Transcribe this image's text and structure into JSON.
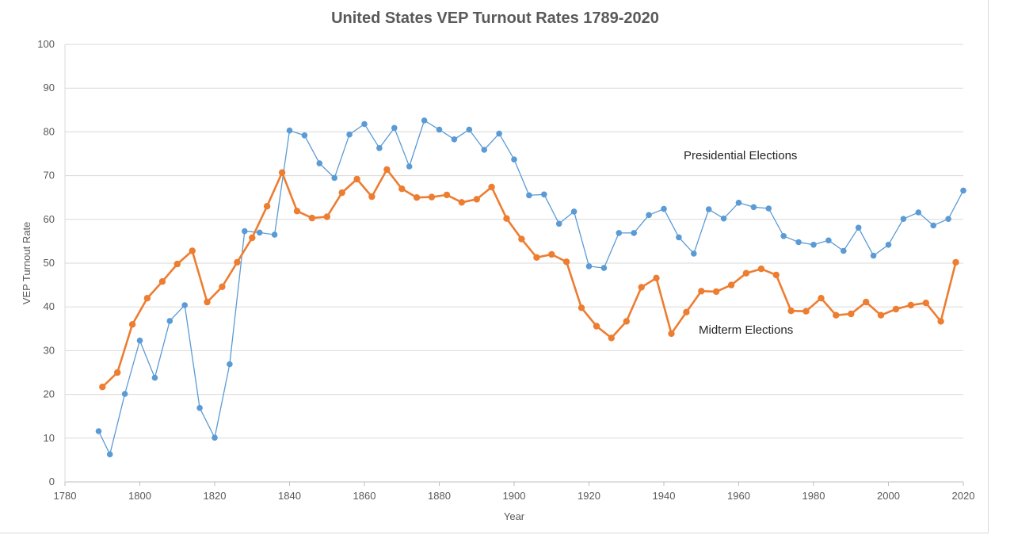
{
  "chart_data": {
    "type": "line",
    "title": "United States VEP Turnout Rates 1789-2020",
    "xlabel": "Year",
    "ylabel": "VEP Turnout Rate",
    "xlim": [
      1780,
      2020
    ],
    "ylim": [
      0,
      100
    ],
    "x_ticks": [
      1780,
      1800,
      1820,
      1840,
      1860,
      1880,
      1900,
      1920,
      1940,
      1960,
      1980,
      2000,
      2020
    ],
    "y_ticks": [
      0,
      10,
      20,
      30,
      40,
      50,
      60,
      70,
      80,
      90,
      100
    ],
    "grid": "horizontal",
    "legend": "none",
    "annotations": [
      {
        "text": "Presidential Elections",
        "series": "Presidential Elections"
      },
      {
        "text": "Midterm Elections",
        "series": "Midterm Elections"
      }
    ],
    "series": [
      {
        "name": "Presidential Elections",
        "color": "#5b9bd5",
        "points": [
          [
            1789,
            11.6
          ],
          [
            1792,
            6.3
          ],
          [
            1796,
            20.1
          ],
          [
            1800,
            32.3
          ],
          [
            1804,
            23.8
          ],
          [
            1808,
            36.8
          ],
          [
            1812,
            40.4
          ],
          [
            1816,
            16.9
          ],
          [
            1820,
            10.1
          ],
          [
            1824,
            26.9
          ],
          [
            1828,
            57.3
          ],
          [
            1832,
            57.0
          ],
          [
            1836,
            56.5
          ],
          [
            1840,
            80.3
          ],
          [
            1844,
            79.2
          ],
          [
            1848,
            72.8
          ],
          [
            1852,
            69.5
          ],
          [
            1856,
            79.4
          ],
          [
            1860,
            81.8
          ],
          [
            1864,
            76.3
          ],
          [
            1868,
            80.9
          ],
          [
            1872,
            72.1
          ],
          [
            1876,
            82.6
          ],
          [
            1880,
            80.5
          ],
          [
            1884,
            78.3
          ],
          [
            1888,
            80.5
          ],
          [
            1892,
            75.9
          ],
          [
            1896,
            79.6
          ],
          [
            1900,
            73.7
          ],
          [
            1904,
            65.5
          ],
          [
            1908,
            65.7
          ],
          [
            1912,
            59.0
          ],
          [
            1916,
            61.8
          ],
          [
            1920,
            49.3
          ],
          [
            1924,
            48.9
          ],
          [
            1928,
            56.9
          ],
          [
            1932,
            56.9
          ],
          [
            1936,
            61.0
          ],
          [
            1940,
            62.4
          ],
          [
            1944,
            55.9
          ],
          [
            1948,
            52.2
          ],
          [
            1952,
            62.3
          ],
          [
            1956,
            60.2
          ],
          [
            1960,
            63.8
          ],
          [
            1964,
            62.8
          ],
          [
            1968,
            62.5
          ],
          [
            1972,
            56.2
          ],
          [
            1976,
            54.8
          ],
          [
            1980,
            54.2
          ],
          [
            1984,
            55.2
          ],
          [
            1988,
            52.8
          ],
          [
            1992,
            58.1
          ],
          [
            1996,
            51.7
          ],
          [
            2000,
            54.2
          ],
          [
            2004,
            60.1
          ],
          [
            2008,
            61.6
          ],
          [
            2012,
            58.6
          ],
          [
            2016,
            60.1
          ],
          [
            2020,
            66.6
          ]
        ]
      },
      {
        "name": "Midterm Elections",
        "color": "#ed7d31",
        "points": [
          [
            1790,
            21.7
          ],
          [
            1794,
            25.0
          ],
          [
            1798,
            36.0
          ],
          [
            1802,
            42.0
          ],
          [
            1806,
            45.8
          ],
          [
            1810,
            49.8
          ],
          [
            1814,
            52.8
          ],
          [
            1818,
            41.1
          ],
          [
            1822,
            44.6
          ],
          [
            1826,
            50.2
          ],
          [
            1830,
            55.8
          ],
          [
            1834,
            63.0
          ],
          [
            1838,
            70.7
          ],
          [
            1842,
            61.9
          ],
          [
            1846,
            60.3
          ],
          [
            1850,
            60.6
          ],
          [
            1854,
            66.1
          ],
          [
            1858,
            69.2
          ],
          [
            1862,
            65.2
          ],
          [
            1866,
            71.4
          ],
          [
            1870,
            67.0
          ],
          [
            1874,
            65.0
          ],
          [
            1878,
            65.1
          ],
          [
            1882,
            65.6
          ],
          [
            1886,
            63.9
          ],
          [
            1890,
            64.6
          ],
          [
            1894,
            67.4
          ],
          [
            1898,
            60.2
          ],
          [
            1902,
            55.5
          ],
          [
            1906,
            51.3
          ],
          [
            1910,
            52.0
          ],
          [
            1914,
            50.3
          ],
          [
            1918,
            39.8
          ],
          [
            1922,
            35.6
          ],
          [
            1926,
            32.9
          ],
          [
            1930,
            36.7
          ],
          [
            1934,
            44.5
          ],
          [
            1938,
            46.6
          ],
          [
            1942,
            33.9
          ],
          [
            1946,
            38.8
          ],
          [
            1950,
            43.6
          ],
          [
            1954,
            43.5
          ],
          [
            1958,
            45.0
          ],
          [
            1962,
            47.7
          ],
          [
            1966,
            48.7
          ],
          [
            1970,
            47.3
          ],
          [
            1974,
            39.1
          ],
          [
            1978,
            39.0
          ],
          [
            1982,
            42.0
          ],
          [
            1986,
            38.1
          ],
          [
            1990,
            38.4
          ],
          [
            1994,
            41.1
          ],
          [
            1998,
            38.1
          ],
          [
            2002,
            39.5
          ],
          [
            2006,
            40.4
          ],
          [
            2010,
            40.9
          ],
          [
            2014,
            36.7
          ],
          [
            2018,
            50.2
          ]
        ]
      }
    ]
  }
}
